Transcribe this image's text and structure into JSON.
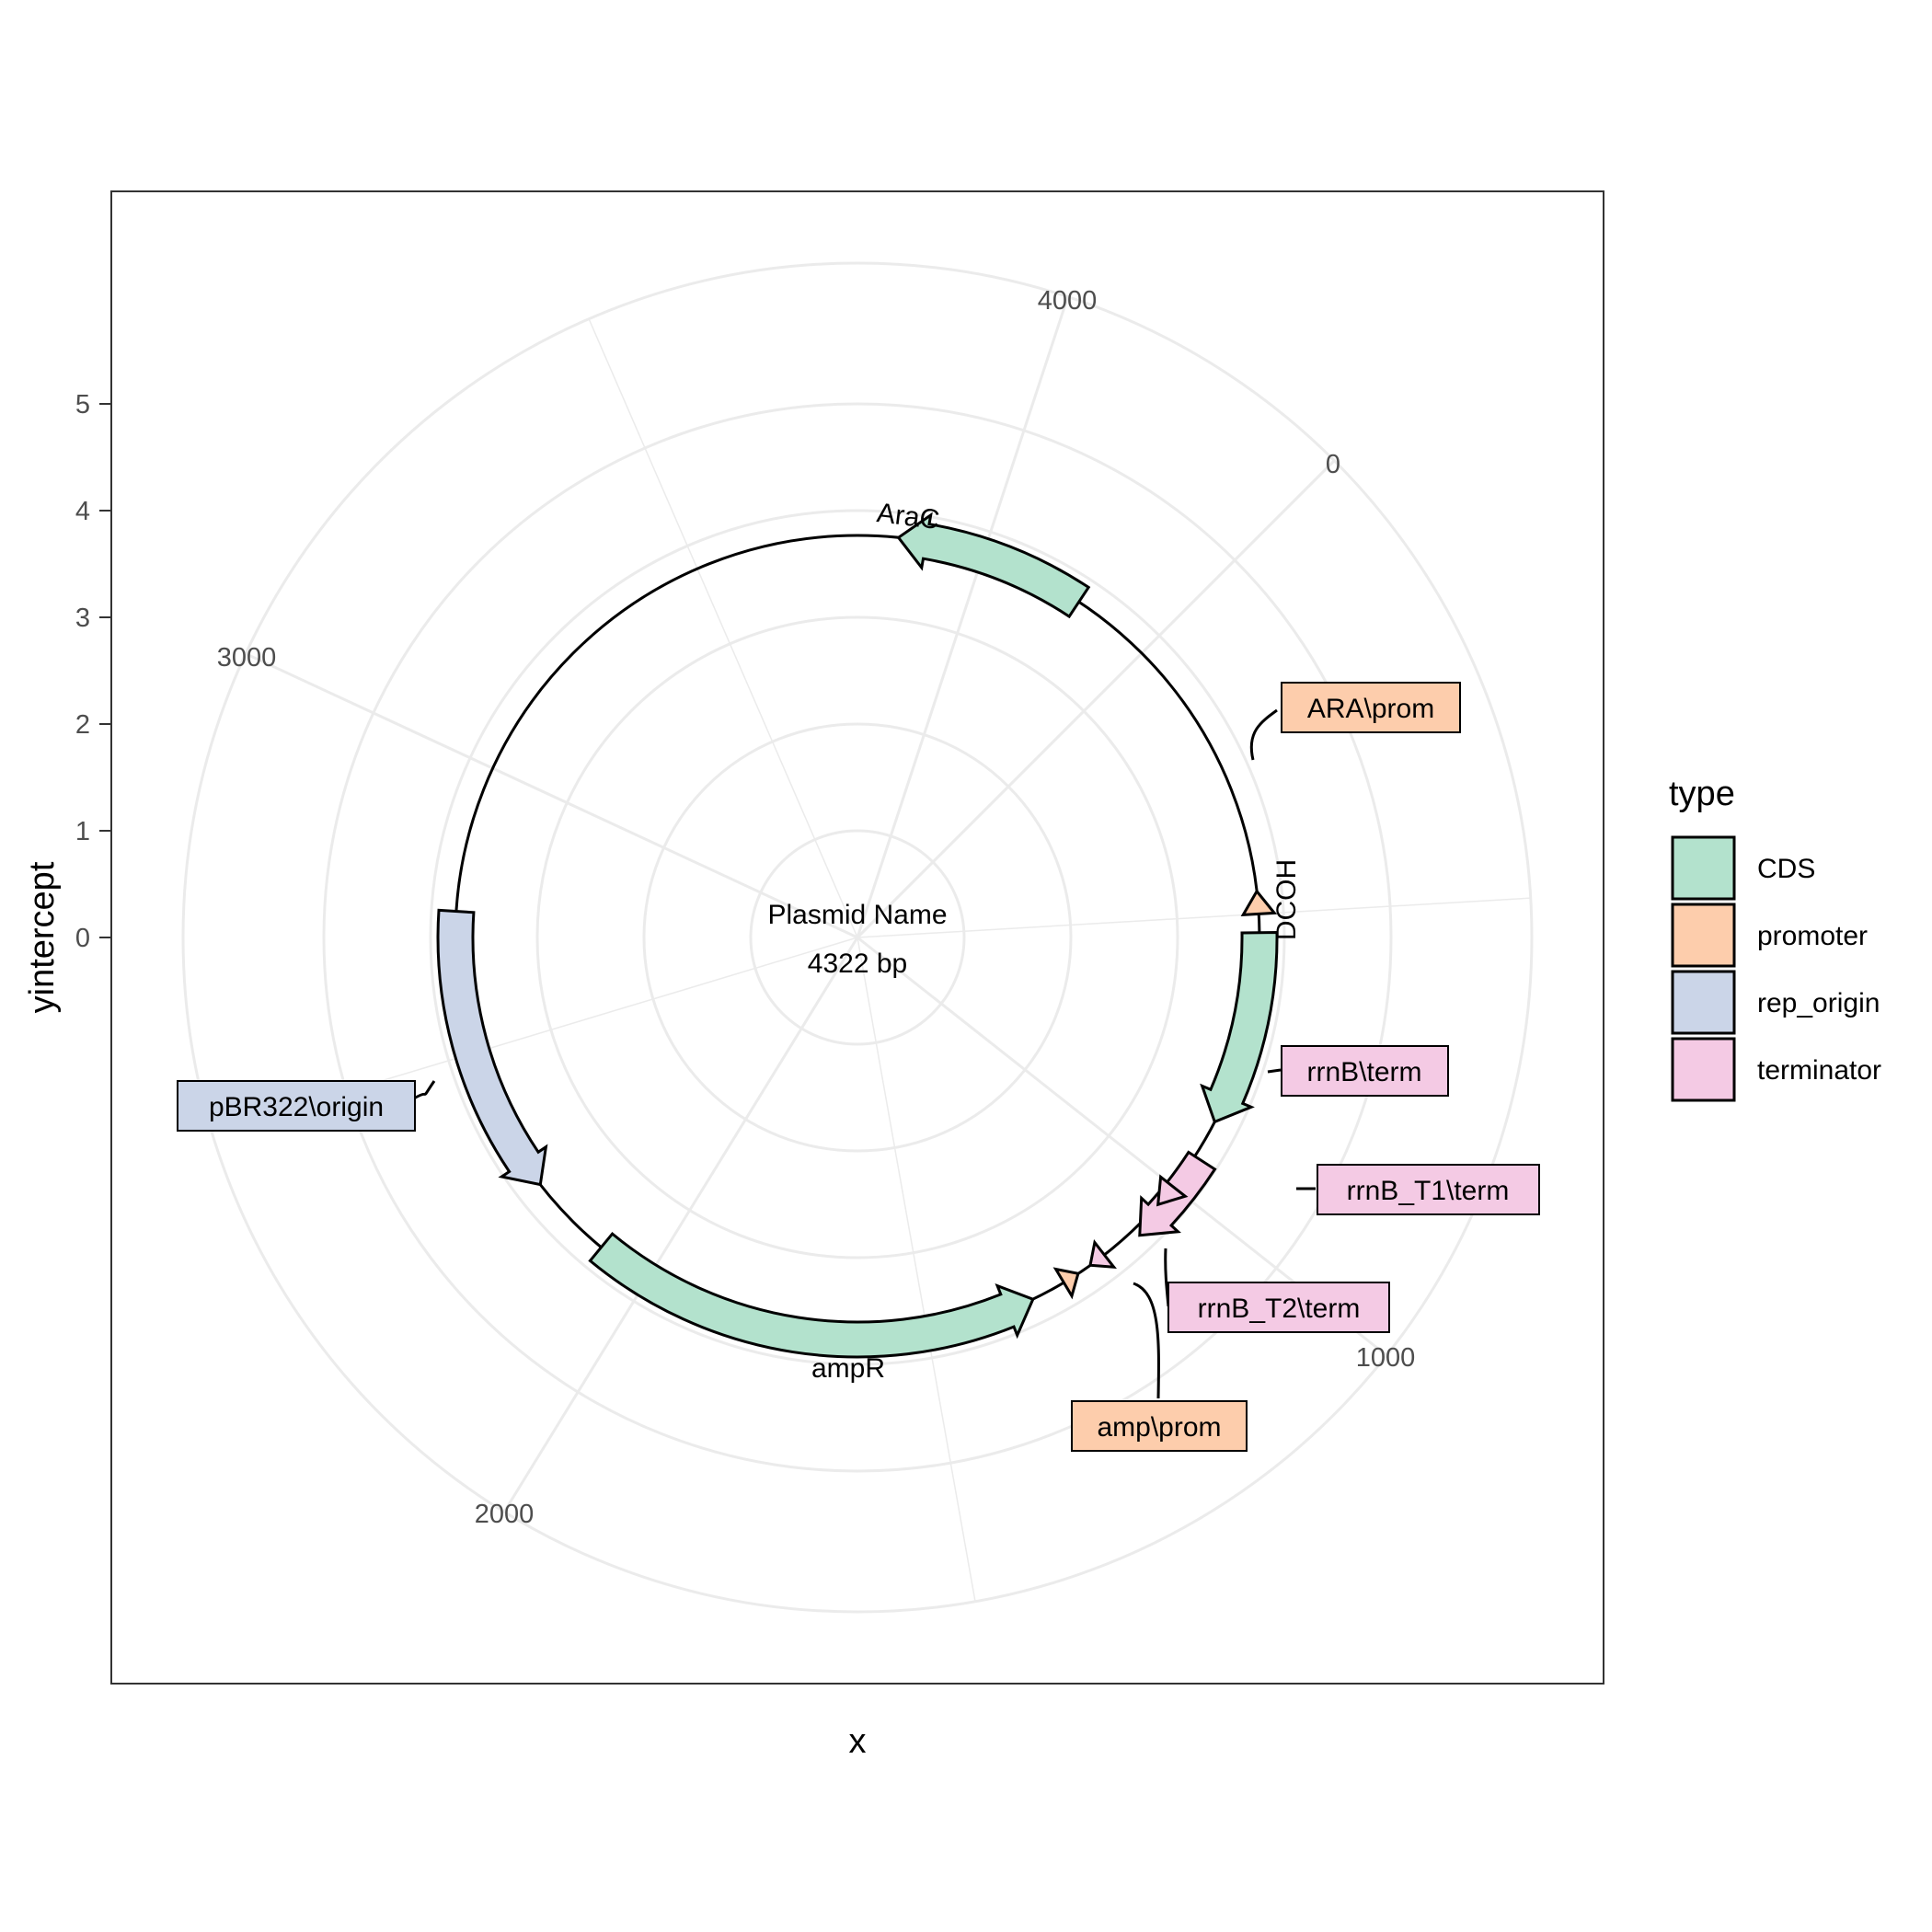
{
  "plasmid": {
    "name": "Plasmid Name",
    "length_label": "4322 bp",
    "length_bp": 4322
  },
  "axes": {
    "x_title": "x",
    "y_title": "yintercept",
    "y_ticks": [
      "0",
      "1",
      "2",
      "3",
      "4",
      "5"
    ],
    "angular_ticks": [
      {
        "label": "0",
        "value": 0
      },
      {
        "label": "1000",
        "value": 1000
      },
      {
        "label": "2000",
        "value": 2000
      },
      {
        "label": "3000",
        "value": 3000
      },
      {
        "label": "4000",
        "value": 4000
      }
    ]
  },
  "legend": {
    "title": "type",
    "items": [
      {
        "label": "CDS",
        "color": "#b3e2cd"
      },
      {
        "label": "promoter",
        "color": "#fdcdac"
      },
      {
        "label": "rep_origin",
        "color": "#cbd5e8"
      },
      {
        "label": "terminator",
        "color": "#f4cae4"
      }
    ]
  },
  "features": [
    {
      "name": "AraC",
      "type": "CDS",
      "start": 3852,
      "end": 4183,
      "direction": "reverse",
      "label_style": "inline"
    },
    {
      "name": "ARA\\prom",
      "type": "promoter",
      "start": 461,
      "end": 500,
      "direction": "reverse",
      "label_style": "box"
    },
    {
      "name": "DCOH",
      "type": "CDS",
      "start": 532,
      "end": 868,
      "direction": "forward",
      "label_style": "inline"
    },
    {
      "name": "rrnB\\term",
      "type": "terminator",
      "start": 936,
      "end": 1099,
      "direction": "forward",
      "label_style": "box"
    },
    {
      "name": "rrnB_T1\\term",
      "type": "terminator",
      "start": 1000,
      "end": 1040,
      "direction": "forward",
      "label_style": "box"
    },
    {
      "name": "rrnB_T2\\term",
      "type": "terminator",
      "start": 1166,
      "end": 1196,
      "direction": "forward",
      "label_style": "box"
    },
    {
      "name": "amp\\prom",
      "type": "promoter",
      "start": 1221,
      "end": 1250,
      "direction": "reverse",
      "label_style": "box"
    },
    {
      "name": "ampR",
      "type": "CDS",
      "start": 1310,
      "end": 2096,
      "direction": "reverse",
      "label_style": "inline"
    },
    {
      "name": "pBR322\\origin",
      "type": "rep_origin",
      "start": 2246,
      "end": 2746,
      "direction": "reverse",
      "label_style": "box"
    }
  ]
}
